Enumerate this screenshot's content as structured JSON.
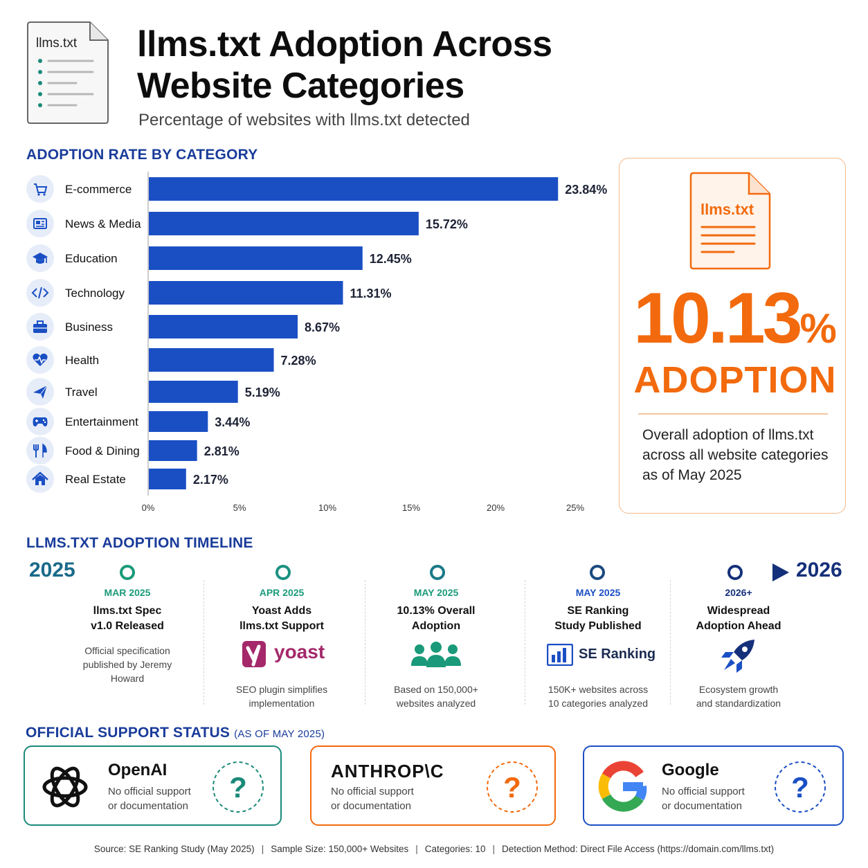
{
  "header": {
    "doc_icon_label": "llms.txt",
    "title_line1": "llms.txt Adoption Across",
    "title_line2": "Website Categories",
    "subtitle": "Percentage of websites with llms.txt detected"
  },
  "chart_section_title": "ADOPTION RATE BY CATEGORY",
  "chart_data": {
    "type": "bar",
    "orientation": "horizontal",
    "title": "ADOPTION RATE BY CATEGORY",
    "categories": [
      "E-commerce",
      "News & Media",
      "Education",
      "Technology",
      "Business",
      "Health",
      "Travel",
      "Entertainment",
      "Food & Dining",
      "Real Estate"
    ],
    "values": [
      23.84,
      15.72,
      12.45,
      11.31,
      8.67,
      7.28,
      5.19,
      3.44,
      2.81,
      2.17
    ],
    "value_labels": [
      "23.84%",
      "15.72%",
      "12.45%",
      "11.31%",
      "8.67%",
      "7.28%",
      "5.19%",
      "3.44%",
      "2.81%",
      "2.17%"
    ],
    "icons": [
      "cart-icon",
      "newspaper-icon",
      "graduation-cap-icon",
      "code-icon",
      "briefcase-icon",
      "heart-pulse-icon",
      "airplane-icon",
      "gamepad-icon",
      "utensils-icon",
      "house-icon"
    ],
    "x_ticks": [
      "0%",
      "5%",
      "10%",
      "15%",
      "20%",
      "25%"
    ],
    "xlim": [
      0,
      25
    ],
    "bar_color": "#1a4fc4",
    "grid": false
  },
  "summary": {
    "file_label": "llms.txt",
    "value": "10.13",
    "percent_sign": "%",
    "word": "ADOPTION",
    "description": "Overall adoption of llms.txt across all website categories as of May 2025",
    "accent_color": "#f26a0d"
  },
  "timeline": {
    "title": "LLMS.TXT ADOPTION TIMELINE",
    "start_year": "2025",
    "end_year": "2026",
    "events": [
      {
        "date": "MAR 2025",
        "title_lines": [
          "llms.txt Spec",
          "v1.0 Released"
        ],
        "desc_lines": [
          "Official specification",
          "published by Jeremy",
          "Howard"
        ],
        "icon": "none"
      },
      {
        "date": "APR 2025",
        "title_lines": [
          "Yoast Adds",
          "llms.txt Support"
        ],
        "desc_lines": [
          "SEO plugin simplifies",
          "implementation"
        ],
        "icon": "yoast-logo",
        "logo_text": "yoast"
      },
      {
        "date": "MAY 2025",
        "title_lines": [
          "10.13% Overall",
          "Adoption"
        ],
        "desc_lines": [
          "Based on 150,000+",
          "websites analyzed"
        ],
        "icon": "people-group-icon"
      },
      {
        "date": "MAY 2025",
        "title_lines": [
          "SE Ranking",
          "Study Published"
        ],
        "desc_lines": [
          "150K+ websites across",
          "10 categories analyzed"
        ],
        "icon": "se-ranking-logo",
        "logo_text": "SE Ranking"
      },
      {
        "date": "2026+",
        "title_lines": [
          "Widespread",
          "Adoption Ahead"
        ],
        "desc_lines": [
          "Ecosystem growth",
          "and standardization"
        ],
        "icon": "rocket-icon"
      }
    ]
  },
  "support": {
    "title": "OFFICIAL SUPPORT STATUS",
    "title_note": "(AS OF MAY 2025)",
    "providers": [
      {
        "name": "OpenAI",
        "desc_lines": [
          "No official support",
          "or documentation"
        ],
        "color": "#1a8a7a",
        "status_icon": "question-icon"
      },
      {
        "name": "ANTHROP\\C",
        "desc_lines": [
          "No official support",
          "or documentation"
        ],
        "color": "#f26a0d",
        "status_icon": "question-icon"
      },
      {
        "name": "Google",
        "desc_lines": [
          "No official support",
          "or documentation"
        ],
        "color": "#1a4fc4",
        "status_icon": "question-icon"
      }
    ]
  },
  "footer": {
    "items": [
      "Source: SE Ranking Study (May 2025)",
      "Sample Size: 150,000+ Websites",
      "Categories: 10",
      "Detection Method: Direct File Access (https://domain.com/llms.txt)"
    ]
  }
}
